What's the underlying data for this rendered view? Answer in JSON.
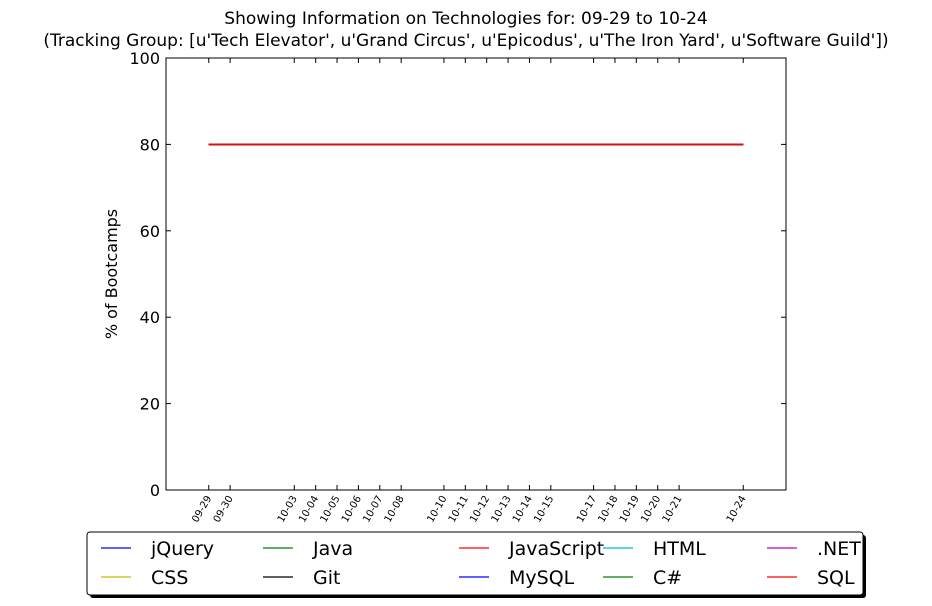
{
  "chart_data": {
    "type": "line",
    "title": "Showing Information on Technologies for: 09-29 to 10-24",
    "subtitle": "(Tracking Group: [u'Tech Elevator', u'Grand Circus', u'Epicodus', u'The Iron Yard', u'Software Guild'])",
    "xlabel": "",
    "ylabel": "% of Bootcamps",
    "ylim": [
      0,
      100
    ],
    "yticks": [
      0,
      20,
      40,
      60,
      80,
      100
    ],
    "x_range_days": [
      -2,
      27
    ],
    "x_ticks": [
      {
        "day": 0,
        "label": "09-29"
      },
      {
        "day": 1,
        "label": "09-30"
      },
      {
        "day": 4,
        "label": "10-03"
      },
      {
        "day": 5,
        "label": "10-04"
      },
      {
        "day": 6,
        "label": "10-05"
      },
      {
        "day": 7,
        "label": "10-06"
      },
      {
        "day": 8,
        "label": "10-07"
      },
      {
        "day": 9,
        "label": "10-08"
      },
      {
        "day": 11,
        "label": "10-10"
      },
      {
        "day": 12,
        "label": "10-11"
      },
      {
        "day": 13,
        "label": "10-12"
      },
      {
        "day": 14,
        "label": "10-13"
      },
      {
        "day": 15,
        "label": "10-14"
      },
      {
        "day": 16,
        "label": "10-15"
      },
      {
        "day": 18,
        "label": "10-17"
      },
      {
        "day": 19,
        "label": "10-18"
      },
      {
        "day": 20,
        "label": "10-19"
      },
      {
        "day": 21,
        "label": "10-20"
      },
      {
        "day": 22,
        "label": "10-21"
      },
      {
        "day": 25,
        "label": "10-24"
      }
    ],
    "series": [
      {
        "name": "jQuery",
        "color": "#0000ff",
        "x_days": [
          0,
          25
        ],
        "values": [
          80,
          80
        ]
      },
      {
        "name": "Java",
        "color": "#008000",
        "x_days": [
          0,
          25
        ],
        "values": [
          80,
          80
        ]
      },
      {
        "name": "JavaScript",
        "color": "#ff0000",
        "x_days": [
          0,
          25
        ],
        "values": [
          80,
          80
        ]
      },
      {
        "name": "HTML",
        "color": "#00bfbf",
        "x_days": [
          0,
          25
        ],
        "values": [
          80,
          80
        ]
      },
      {
        "name": ".NET",
        "color": "#bf00bf",
        "x_days": [
          0,
          25
        ],
        "values": [
          80,
          80
        ]
      },
      {
        "name": "CSS",
        "color": "#bfbf00",
        "x_days": [
          0,
          25
        ],
        "values": [
          80,
          80
        ]
      },
      {
        "name": "Git",
        "color": "#000000",
        "x_days": [
          0,
          25
        ],
        "values": [
          80,
          80
        ]
      },
      {
        "name": "MySQL",
        "color": "#0000ff",
        "x_days": [
          0,
          25
        ],
        "values": [
          80,
          80
        ]
      },
      {
        "name": "C#",
        "color": "#008000",
        "x_days": [
          0,
          25
        ],
        "values": [
          80,
          80
        ]
      },
      {
        "name": "SQL",
        "color": "#ff0000",
        "x_days": [
          0,
          25
        ],
        "values": [
          80,
          80
        ]
      }
    ],
    "legend": {
      "position": "bottom-center",
      "columns": 5,
      "shadow": true
    },
    "grid": false
  }
}
